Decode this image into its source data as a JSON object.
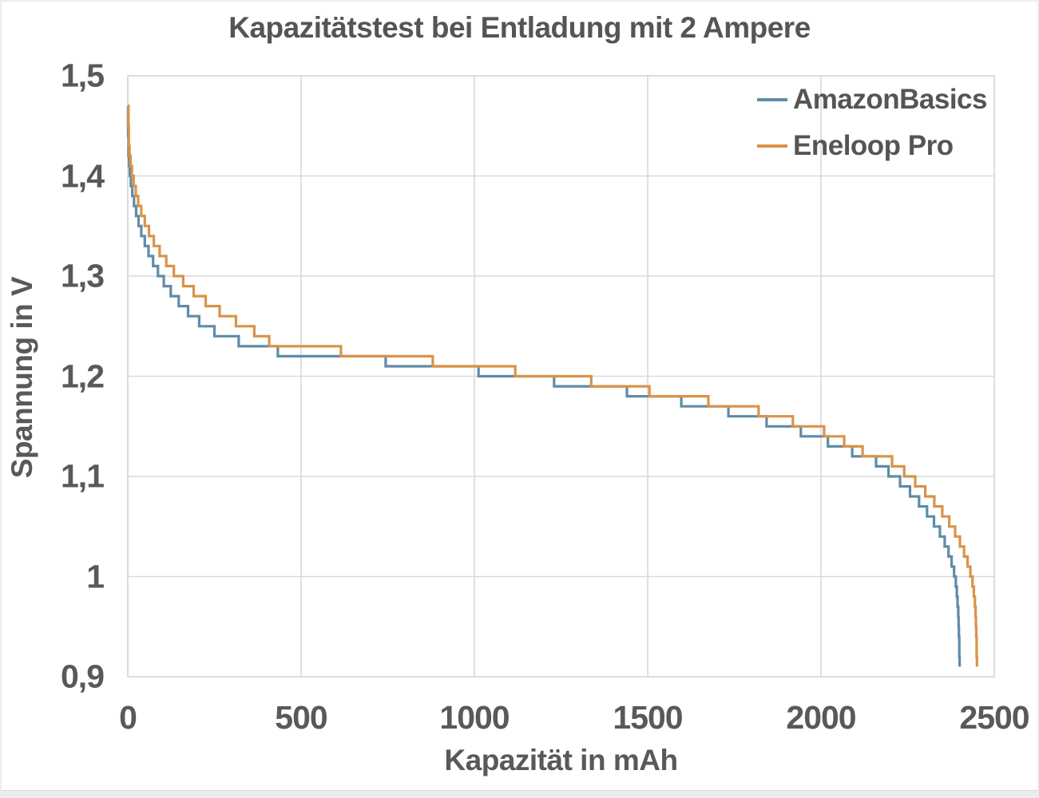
{
  "title": "Kapazitätstest bei Entladung mit 2 Ampere",
  "colors": {
    "text": "#595959",
    "gridline": "#d9d9d9",
    "series_blue": "#5F8CA8",
    "series_orange": "#D99348"
  },
  "chart_data": {
    "type": "line",
    "step_mode": "post",
    "title": "Kapazitätstest bei Entladung mit 2 Ampere",
    "xlabel": "Kapazität in mAh",
    "ylabel": "Spannung in V",
    "xlim": [
      0,
      2500
    ],
    "ylim": [
      0.9,
      1.5
    ],
    "grid": true,
    "legend_position": "top-right",
    "x_ticks": [
      {
        "value": 0,
        "label": "0"
      },
      {
        "value": 500,
        "label": "500"
      },
      {
        "value": 1000,
        "label": "1000"
      },
      {
        "value": 1500,
        "label": "1500"
      },
      {
        "value": 2000,
        "label": "2000"
      },
      {
        "value": 2500,
        "label": "2500"
      }
    ],
    "y_ticks": [
      {
        "value": 1.5,
        "label": "1,5"
      },
      {
        "value": 1.4,
        "label": "1,4"
      },
      {
        "value": 1.3,
        "label": "1,3"
      },
      {
        "value": 1.2,
        "label": "1,2"
      },
      {
        "value": 1.1,
        "label": "1,1"
      },
      {
        "value": 1.0,
        "label": "1"
      },
      {
        "value": 0.9,
        "label": "0,9"
      }
    ],
    "series": [
      {
        "name": "AmazonBasics",
        "color": "#5F8CA8",
        "points": [
          [
            0,
            1.47
          ],
          [
            1,
            1.44
          ],
          [
            2,
            1.42
          ],
          [
            4,
            1.41
          ],
          [
            6,
            1.4
          ],
          [
            9,
            1.39
          ],
          [
            13,
            1.38
          ],
          [
            18,
            1.37
          ],
          [
            24,
            1.36
          ],
          [
            31,
            1.35
          ],
          [
            39,
            1.34
          ],
          [
            49,
            1.33
          ],
          [
            60,
            1.32
          ],
          [
            73,
            1.31
          ],
          [
            87,
            1.3
          ],
          [
            104,
            1.29
          ],
          [
            124,
            1.28
          ],
          [
            147,
            1.27
          ],
          [
            174,
            1.26
          ],
          [
            206,
            1.25
          ],
          [
            250,
            1.24
          ],
          [
            320,
            1.23
          ],
          [
            433,
            1.22
          ],
          [
            744,
            1.21
          ],
          [
            1012,
            1.2
          ],
          [
            1230,
            1.19
          ],
          [
            1440,
            1.18
          ],
          [
            1597,
            1.17
          ],
          [
            1733,
            1.16
          ],
          [
            1843,
            1.15
          ],
          [
            1942,
            1.14
          ],
          [
            2020,
            1.13
          ],
          [
            2090,
            1.12
          ],
          [
            2159,
            1.11
          ],
          [
            2195,
            1.1
          ],
          [
            2228,
            1.09
          ],
          [
            2257,
            1.08
          ],
          [
            2283,
            1.07
          ],
          [
            2306,
            1.06
          ],
          [
            2326,
            1.05
          ],
          [
            2343,
            1.04
          ],
          [
            2357,
            1.03
          ],
          [
            2368,
            1.02
          ],
          [
            2377,
            1.01
          ],
          [
            2384,
            1.0
          ],
          [
            2389,
            0.99
          ],
          [
            2392,
            0.98
          ],
          [
            2394,
            0.97
          ],
          [
            2396,
            0.96
          ],
          [
            2397,
            0.95
          ],
          [
            2398,
            0.94
          ],
          [
            2399,
            0.93
          ],
          [
            2399,
            0.92
          ],
          [
            2400,
            0.91
          ],
          [
            2400,
            0.91
          ]
        ]
      },
      {
        "name": "Eneloop Pro",
        "color": "#D99348",
        "points": [
          [
            0,
            1.47
          ],
          [
            2,
            1.45
          ],
          [
            3,
            1.43
          ],
          [
            5,
            1.42
          ],
          [
            8,
            1.41
          ],
          [
            12,
            1.4
          ],
          [
            17,
            1.39
          ],
          [
            23,
            1.38
          ],
          [
            30,
            1.37
          ],
          [
            39,
            1.36
          ],
          [
            49,
            1.35
          ],
          [
            61,
            1.34
          ],
          [
            75,
            1.33
          ],
          [
            92,
            1.32
          ],
          [
            111,
            1.31
          ],
          [
            133,
            1.3
          ],
          [
            160,
            1.29
          ],
          [
            190,
            1.28
          ],
          [
            225,
            1.27
          ],
          [
            265,
            1.26
          ],
          [
            312,
            1.25
          ],
          [
            365,
            1.24
          ],
          [
            408,
            1.23
          ],
          [
            615,
            1.22
          ],
          [
            880,
            1.21
          ],
          [
            1118,
            1.2
          ],
          [
            1337,
            1.19
          ],
          [
            1505,
            1.18
          ],
          [
            1675,
            1.17
          ],
          [
            1820,
            1.16
          ],
          [
            1919,
            1.15
          ],
          [
            2009,
            1.14
          ],
          [
            2067,
            1.13
          ],
          [
            2120,
            1.12
          ],
          [
            2205,
            1.11
          ],
          [
            2240,
            1.1
          ],
          [
            2272,
            1.09
          ],
          [
            2301,
            1.08
          ],
          [
            2327,
            1.07
          ],
          [
            2350,
            1.06
          ],
          [
            2370,
            1.05
          ],
          [
            2387,
            1.04
          ],
          [
            2401,
            1.03
          ],
          [
            2413,
            1.02
          ],
          [
            2423,
            1.01
          ],
          [
            2431,
            1.0
          ],
          [
            2437,
            0.99
          ],
          [
            2441,
            0.98
          ],
          [
            2444,
            0.97
          ],
          [
            2446,
            0.96
          ],
          [
            2447,
            0.95
          ],
          [
            2448,
            0.94
          ],
          [
            2449,
            0.93
          ],
          [
            2449,
            0.92
          ],
          [
            2450,
            0.91
          ],
          [
            2450,
            0.91
          ]
        ]
      }
    ]
  }
}
